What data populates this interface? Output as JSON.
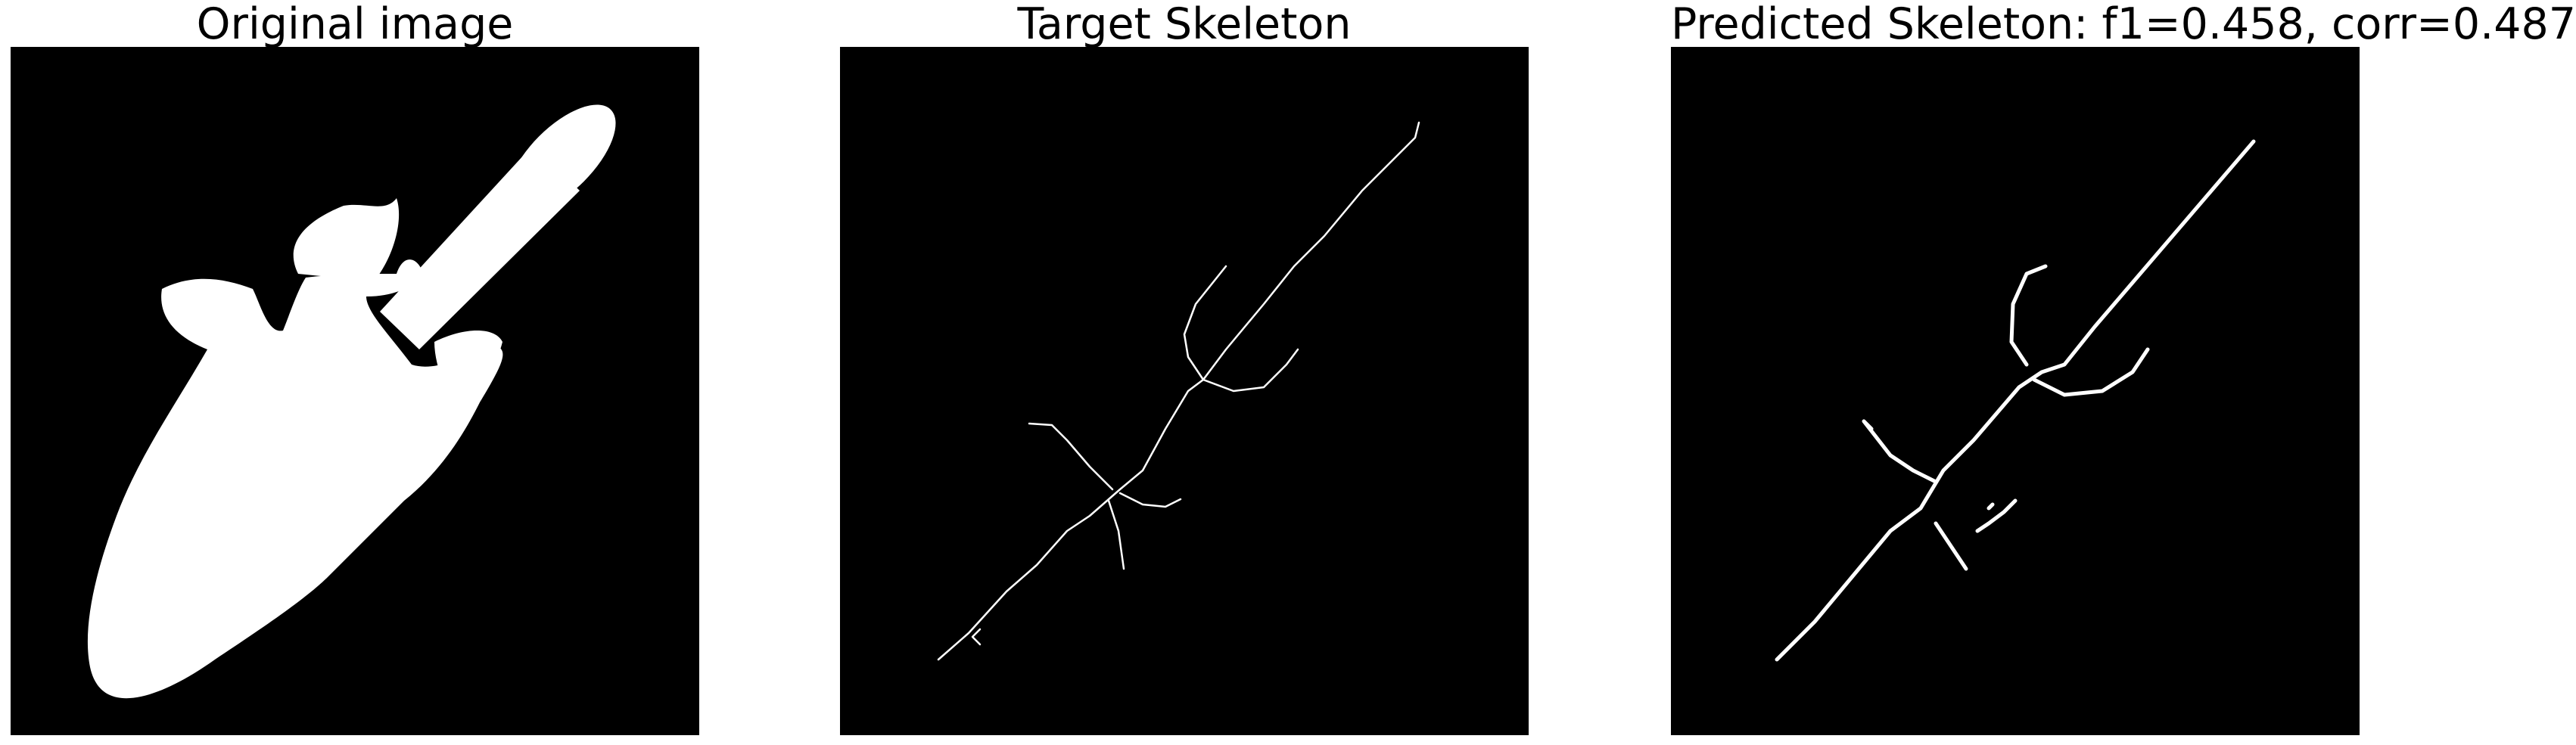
{
  "figure": {
    "panels": [
      {
        "title": "Original image",
        "image": "binary-mask-elongated-blob"
      },
      {
        "title": "Target Skeleton",
        "image": "skeleton-thin-lines"
      },
      {
        "title": "Predicted Skeleton: f1=0.458, corr=0.487",
        "image": "skeleton-predicted-lines"
      }
    ],
    "colors": {
      "background": "#000000",
      "foreground": "#ffffff",
      "page": "#ffffff"
    }
  }
}
